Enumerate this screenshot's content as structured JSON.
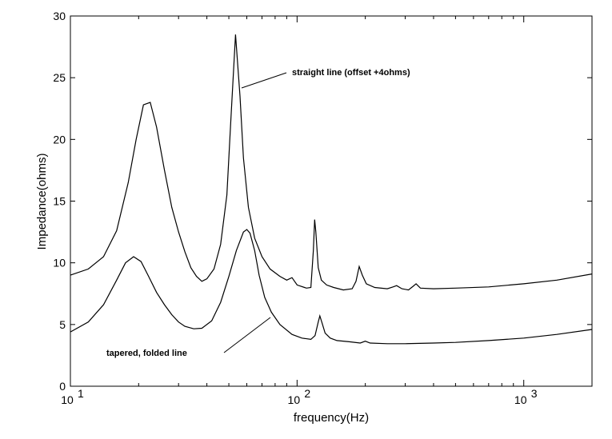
{
  "chart_data": {
    "type": "line",
    "title": "",
    "xlabel": "frequency(Hz)",
    "ylabel": "Impedance(ohms)",
    "xscale": "log",
    "xlim": [
      10,
      2000
    ],
    "ylim": [
      0,
      30
    ],
    "grid": false,
    "x_tick_labels": [
      {
        "value": 10,
        "base": "10",
        "exp": "1"
      },
      {
        "value": 100,
        "base": "10",
        "exp": "2"
      },
      {
        "value": 1000,
        "base": "10",
        "exp": "3"
      }
    ],
    "y_ticks": [
      0,
      5,
      10,
      15,
      20,
      25,
      30
    ],
    "series": [
      {
        "points": [
          [
            10,
            9.0
          ],
          [
            12,
            9.5
          ],
          [
            14,
            10.5
          ],
          [
            16,
            12.6
          ],
          [
            18,
            16.5
          ],
          [
            19.5,
            20.0
          ],
          [
            21,
            22.8
          ],
          [
            22.5,
            23.0
          ],
          [
            24,
            21.0
          ],
          [
            26,
            17.5
          ],
          [
            28,
            14.5
          ],
          [
            30,
            12.5
          ],
          [
            32,
            10.9
          ],
          [
            34,
            9.6
          ],
          [
            36,
            8.9
          ],
          [
            38,
            8.5
          ],
          [
            40,
            8.7
          ],
          [
            43,
            9.5
          ],
          [
            46,
            11.5
          ],
          [
            49,
            15.5
          ],
          [
            51,
            21.5
          ],
          [
            53.5,
            28.5
          ],
          [
            56,
            23.5
          ],
          [
            58,
            18.5
          ],
          [
            61,
            14.5
          ],
          [
            65,
            12.0
          ],
          [
            70,
            10.5
          ],
          [
            76,
            9.5
          ],
          [
            84,
            8.9
          ],
          [
            90,
            8.6
          ],
          [
            95,
            8.8
          ],
          [
            100,
            8.2
          ],
          [
            110,
            7.95
          ],
          [
            115,
            8.0
          ],
          [
            118,
            11.0
          ],
          [
            119.5,
            13.5
          ],
          [
            121,
            12.5
          ],
          [
            124,
            9.6
          ],
          [
            128,
            8.6
          ],
          [
            135,
            8.2
          ],
          [
            145,
            8.0
          ],
          [
            160,
            7.8
          ],
          [
            175,
            7.9
          ],
          [
            182,
            8.5
          ],
          [
            188,
            9.7
          ],
          [
            194,
            9.0
          ],
          [
            202,
            8.3
          ],
          [
            220,
            8.0
          ],
          [
            250,
            7.9
          ],
          [
            265,
            8.05
          ],
          [
            275,
            8.15
          ],
          [
            290,
            7.9
          ],
          [
            310,
            7.8
          ],
          [
            325,
            8.1
          ],
          [
            335,
            8.3
          ],
          [
            350,
            7.95
          ],
          [
            400,
            7.9
          ],
          [
            500,
            7.95
          ],
          [
            700,
            8.05
          ],
          [
            1000,
            8.3
          ],
          [
            1400,
            8.6
          ],
          [
            2000,
            9.1
          ]
        ],
        "annotation": "straight line (offset +4ohms)"
      },
      {
        "points": [
          [
            10,
            4.4
          ],
          [
            12,
            5.2
          ],
          [
            14,
            6.6
          ],
          [
            16,
            8.6
          ],
          [
            17.5,
            10.0
          ],
          [
            19,
            10.5
          ],
          [
            20.5,
            10.1
          ],
          [
            22,
            9.0
          ],
          [
            24,
            7.6
          ],
          [
            26,
            6.6
          ],
          [
            28,
            5.8
          ],
          [
            30,
            5.2
          ],
          [
            32,
            4.85
          ],
          [
            35,
            4.65
          ],
          [
            38,
            4.7
          ],
          [
            42,
            5.3
          ],
          [
            46,
            6.8
          ],
          [
            50,
            8.9
          ],
          [
            54,
            11.0
          ],
          [
            58,
            12.5
          ],
          [
            60,
            12.7
          ],
          [
            62,
            12.4
          ],
          [
            65,
            11.0
          ],
          [
            68,
            9.0
          ],
          [
            72,
            7.2
          ],
          [
            77,
            6.0
          ],
          [
            84,
            5.0
          ],
          [
            95,
            4.2
          ],
          [
            105,
            3.9
          ],
          [
            115,
            3.8
          ],
          [
            120,
            4.1
          ],
          [
            124,
            5.2
          ],
          [
            126,
            5.7
          ],
          [
            129,
            5.1
          ],
          [
            133,
            4.3
          ],
          [
            140,
            3.9
          ],
          [
            150,
            3.7
          ],
          [
            170,
            3.6
          ],
          [
            190,
            3.5
          ],
          [
            200,
            3.65
          ],
          [
            210,
            3.5
          ],
          [
            250,
            3.45
          ],
          [
            300,
            3.45
          ],
          [
            400,
            3.5
          ],
          [
            500,
            3.55
          ],
          [
            700,
            3.7
          ],
          [
            1000,
            3.9
          ],
          [
            1400,
            4.2
          ],
          [
            2000,
            4.6
          ]
        ],
        "annotation": "tapered, folded line"
      }
    ]
  }
}
